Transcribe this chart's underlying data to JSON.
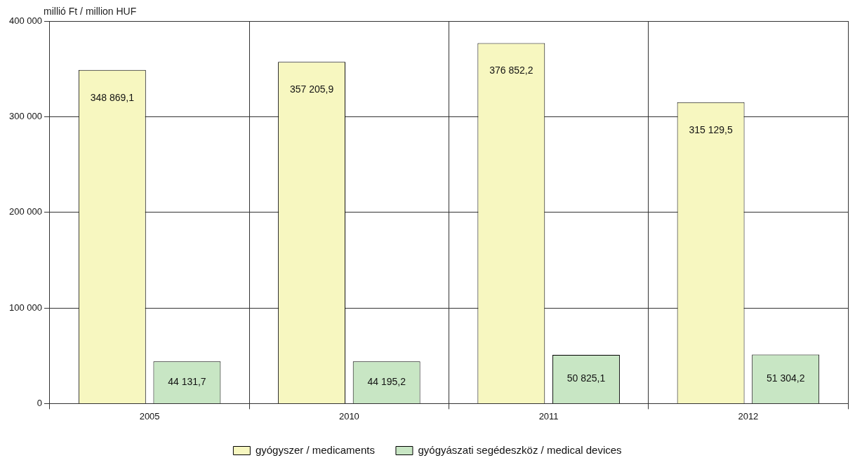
{
  "chart_data": {
    "type": "bar",
    "ylabel": "millió Ft / million HUF",
    "categories": [
      "2005",
      "2010",
      "2011",
      "2012"
    ],
    "series": [
      {
        "name": "gyógyszer / medicaments",
        "color": "#f7f7c0",
        "values": [
          348869.1,
          357205.9,
          376852.2,
          315129.5
        ],
        "value_labels": [
          "348 869,1",
          "357 205,9",
          "376 852,2",
          "315 129,5"
        ]
      },
      {
        "name": "gyógyászati segédeszköz / medical devices",
        "color": "#c8e6c4",
        "values": [
          44131.7,
          44195.2,
          50825.1,
          51304.2
        ],
        "value_labels": [
          "44 131,7",
          "44 195,2",
          "50 825,1",
          "51 304,2"
        ]
      }
    ],
    "ylim": [
      0,
      400000
    ],
    "yticks": [
      {
        "value": 0,
        "label": "0"
      },
      {
        "value": 100000,
        "label": "100 000"
      },
      {
        "value": 200000,
        "label": "200 000"
      },
      {
        "value": 300000,
        "label": "300 000"
      },
      {
        "value": 400000,
        "label": "400 000"
      }
    ],
    "grid": true,
    "legend": "bottom"
  }
}
